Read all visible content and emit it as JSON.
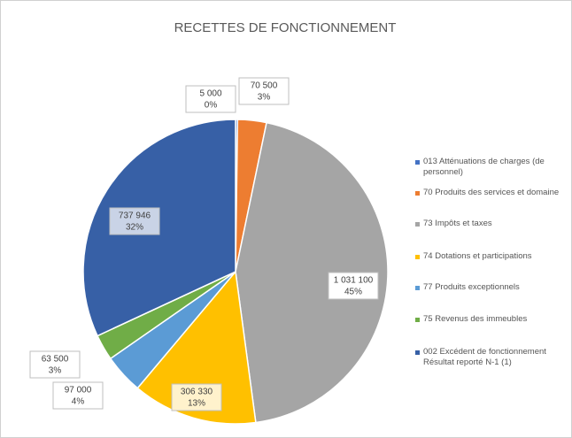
{
  "chart_data": {
    "type": "pie",
    "title": "RECETTES DE FONCTIONNEMENT",
    "categories": [
      "013 Atténuations de charges (de personnel)",
      "70 Produits des services et domaine",
      "73 Impôts et taxes",
      "74 Dotations et participations",
      "77 Produits exceptionnels",
      "75 Revenus des immeubles",
      "002 Excédent de fonctionnement Résultat reporté N-1 (1)"
    ],
    "values": [
      5000,
      70500,
      1031100,
      306330,
      97000,
      63500,
      737946
    ],
    "value_labels": [
      "5 000",
      "70 500",
      "1 031 100",
      "306 330",
      "97 000",
      "63 500",
      "737 946"
    ],
    "percentages": [
      0,
      3,
      45,
      13,
      4,
      3,
      32
    ],
    "percentage_labels": [
      "0%",
      "3%",
      "45%",
      "13%",
      "4%",
      "3%",
      "32%"
    ],
    "colors": [
      "#4472c4",
      "#ed7d31",
      "#a5a5a5",
      "#ffc000",
      "#5b9bd5",
      "#70ad47",
      "#3760a6"
    ],
    "legend": "right"
  }
}
